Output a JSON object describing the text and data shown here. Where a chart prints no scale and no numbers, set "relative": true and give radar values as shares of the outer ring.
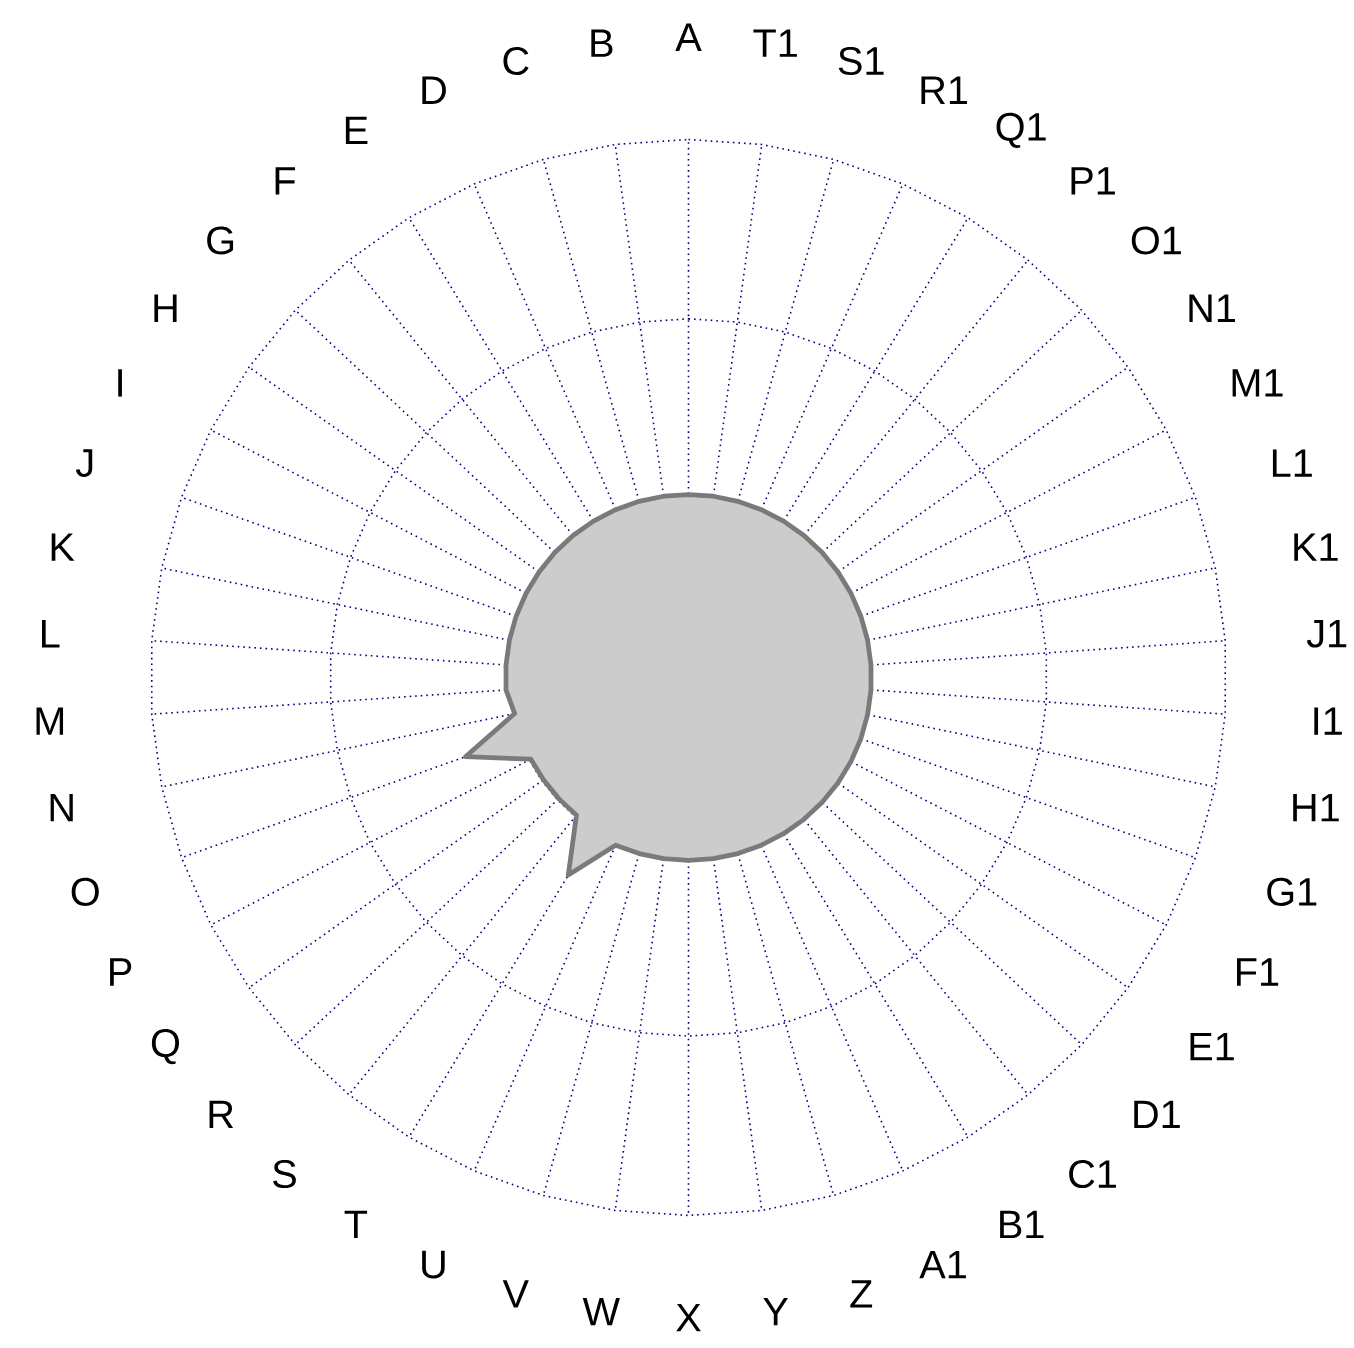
{
  "chart_data": {
    "type": "radar",
    "relative": true,
    "grid": true,
    "categories": [
      "A",
      "T1",
      "S1",
      "R1",
      "Q1",
      "P1",
      "O1",
      "N1",
      "M1",
      "L1",
      "K1",
      "J1",
      "I1",
      "H1",
      "G1",
      "F1",
      "E1",
      "D1",
      "C1",
      "B1",
      "A1",
      "Z",
      "Y",
      "X",
      "W",
      "V",
      "U",
      "T",
      "S",
      "R",
      "Q",
      "P",
      "O",
      "N",
      "M",
      "L",
      "K",
      "J",
      "I",
      "H",
      "G",
      "F",
      "E",
      "D",
      "C",
      "B"
    ],
    "series": [
      {
        "color": "#cccccc",
        "values": [
          0.34,
          0.34,
          0.34,
          0.34,
          0.34,
          0.34,
          0.34,
          0.34,
          0.34,
          0.34,
          0.34,
          0.34,
          0.34,
          0.34,
          0.34,
          0.34,
          0.34,
          0.34,
          0.34,
          0.34,
          0.34,
          0.34,
          0.34,
          0.34,
          0.34,
          0.34,
          0.34,
          0.43,
          0.33,
          0.33,
          0.33,
          0.33,
          0.44,
          0.33,
          0.34,
          0.34,
          0.34,
          0.34,
          0.34,
          0.34,
          0.34,
          0.34,
          0.34,
          0.34,
          0.34,
          0.34
        ]
      }
    ]
  }
}
